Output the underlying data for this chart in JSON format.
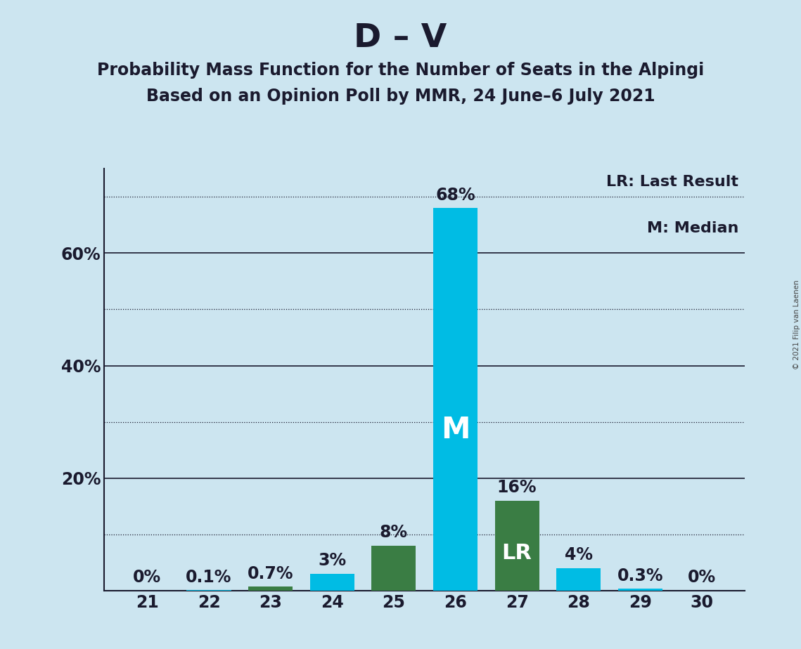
{
  "title": "D – V",
  "subtitle1": "Probability Mass Function for the Number of Seats in the Alpingi",
  "subtitle2": "Based on an Opinion Poll by MMR, 24 June–6 July 2021",
  "copyright": "© 2021 Filip van Laenen",
  "seats": [
    21,
    22,
    23,
    24,
    25,
    26,
    27,
    28,
    29,
    30
  ],
  "probabilities": [
    0.0,
    0.1,
    0.7,
    3.0,
    8.0,
    68.0,
    16.0,
    4.0,
    0.3,
    0.0
  ],
  "bar_colors": [
    "#00bce4",
    "#00bce4",
    "#3a7d44",
    "#00bce4",
    "#3a7d44",
    "#00bce4",
    "#3a7d44",
    "#00bce4",
    "#00bce4",
    "#3a7d44"
  ],
  "median_seat": 26,
  "lr_seat": 27,
  "legend_lr": "LR: Last Result",
  "legend_m": "M: Median",
  "background_color": "#cce5f0",
  "ylim": [
    0,
    75
  ],
  "ytick_labels": [
    "20%",
    "40%",
    "60%"
  ],
  "ytick_values": [
    20,
    40,
    60
  ],
  "solid_gridlines": [
    20,
    40,
    60
  ],
  "dotted_gridlines": [
    10,
    30,
    50,
    70
  ],
  "title_fontsize": 34,
  "subtitle_fontsize": 17,
  "bar_label_fontsize": 17,
  "axis_tick_fontsize": 17,
  "legend_fontsize": 16
}
